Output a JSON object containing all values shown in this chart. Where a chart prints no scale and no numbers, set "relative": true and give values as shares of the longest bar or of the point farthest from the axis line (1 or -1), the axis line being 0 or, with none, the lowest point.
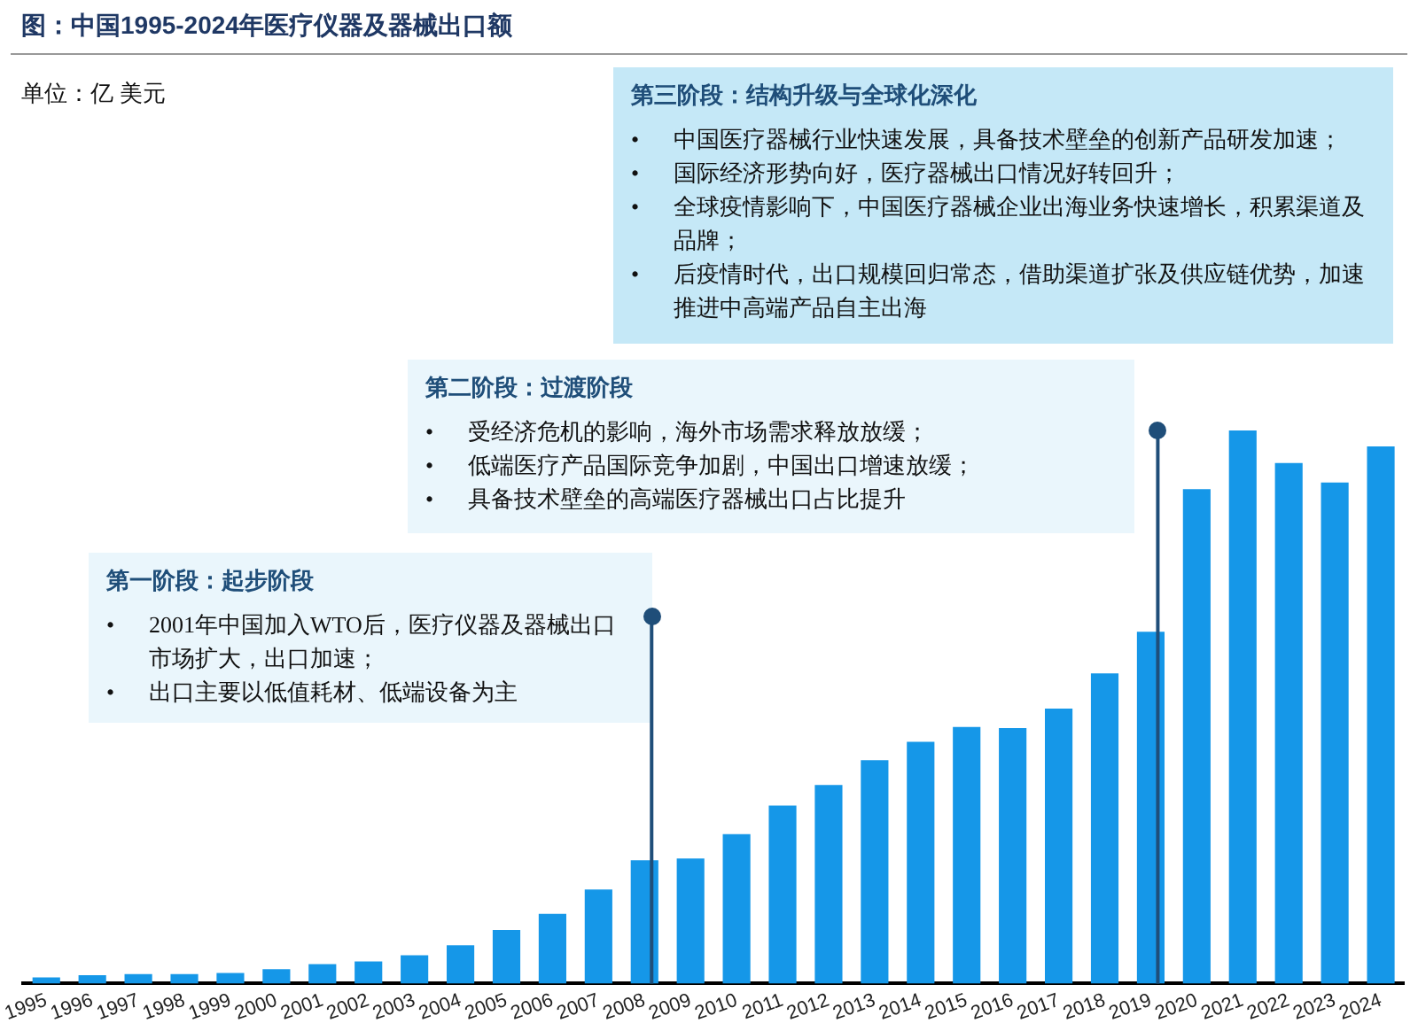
{
  "chart_data": {
    "type": "bar",
    "title": "图：中国1995-2024年医疗仪器及器械出口额",
    "subtitle": "单位：亿 美元",
    "categories": [
      "1995",
      "1996",
      "1997",
      "1998",
      "1999",
      "2000",
      "2001",
      "2002",
      "2003",
      "2004",
      "2005",
      "2006",
      "2007",
      "2008",
      "2009",
      "2010",
      "2011",
      "2012",
      "2013",
      "2014",
      "2015",
      "2016",
      "2017",
      "2018",
      "2019",
      "2020",
      "2021",
      "2022",
      "2023",
      "2024"
    ],
    "values": [
      0.011,
      0.015,
      0.017,
      0.017,
      0.019,
      0.026,
      0.035,
      0.04,
      0.051,
      0.069,
      0.097,
      0.126,
      0.17,
      0.223,
      0.226,
      0.27,
      0.322,
      0.359,
      0.404,
      0.437,
      0.464,
      0.462,
      0.497,
      0.561,
      0.636,
      0.894,
      1,
      0.941,
      0.906,
      0.971
    ],
    "color": "#1597e8",
    "relative": true,
    "grid": false,
    "legend": false,
    "ref_lines": [
      {
        "axis": "x",
        "value": "2008",
        "color": "#1f4e79"
      },
      {
        "axis": "x",
        "value": "2019",
        "color": "#1f4e79"
      }
    ],
    "annotations": [
      "第一阶段：起步阶段",
      "•",
      "2001年中国加入WTO后，医疗仪器及器械出口市场扩大，出口加速；",
      "•",
      "出口主要以低值耗材、低端设备为主",
      "第二阶段：过渡阶段",
      "•",
      "受经济危机的影响，海外市场需求释放放缓；",
      "•",
      "低端医疗产品国际竞争加剧，中国出口增速放缓；",
      "•",
      "具备技术壁垒的高端医疗器械出口占比提升",
      "第三阶段：结构升级与全球化深化",
      "•",
      "中国医疗器械行业快速发展，具备技术壁垒的创新产品研发加速；",
      "•",
      "国际经济形势向好，医疗器械出口情况好转回升；",
      "•",
      "全球疫情影响下，中国医疗器械企业出海业务快速增长，积累渠道及品牌；",
      "•",
      "后疫情时代，出口规模回归常态，借助渠道扩张及供应链优势，加速推进中高端产品自主出海"
    ]
  }
}
